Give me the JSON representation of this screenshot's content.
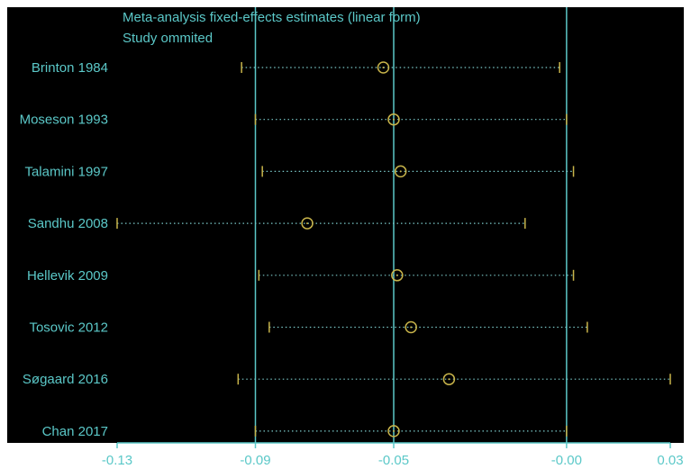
{
  "chart_data": {
    "type": "forest",
    "title": "Meta-analysis fixed-effects estimates (linear form)",
    "subtitle": "Study ommited",
    "xlabel": "",
    "ylabel": "",
    "xlim": [
      -0.13,
      0.03
    ],
    "x_ticks": [
      {
        "value": -0.13,
        "label": "-0.13"
      },
      {
        "value": -0.09,
        "label": "-0.09"
      },
      {
        "value": -0.05,
        "label": "-0.05"
      },
      {
        "value": -0.0,
        "label": "-0.00"
      },
      {
        "value": 0.03,
        "label": "0.03"
      }
    ],
    "reference_lines": [
      -0.09,
      -0.05,
      -0.0
    ],
    "studies": [
      {
        "label": "Brinton 1984",
        "estimate": -0.053,
        "lower": -0.094,
        "upper": -0.002
      },
      {
        "label": "Moseson 1993",
        "estimate": -0.05,
        "lower": -0.09,
        "upper": 0.0
      },
      {
        "label": "Talamini 1997",
        "estimate": -0.048,
        "lower": -0.088,
        "upper": 0.002
      },
      {
        "label": "Sandhu 2008",
        "estimate": -0.075,
        "lower": -0.13,
        "upper": -0.012
      },
      {
        "label": "Hellevik 2009",
        "estimate": -0.049,
        "lower": -0.089,
        "upper": 0.002
      },
      {
        "label": "Tosovic 2012",
        "estimate": -0.045,
        "lower": -0.086,
        "upper": 0.006
      },
      {
        "label": "Søgaard 2016",
        "estimate": -0.034,
        "lower": -0.095,
        "upper": 0.03
      },
      {
        "label": "Chan 2017",
        "estimate": -0.05,
        "lower": -0.09,
        "upper": 0.0
      }
    ],
    "grid": false,
    "legend": "none"
  },
  "colors": {
    "background": "#000000",
    "frame": "#ffffff",
    "text": "#5bc8c8",
    "axis": "#5bc8c8",
    "reference_line": "#5bc8c8",
    "ci_line": "#7ac8c8",
    "ci_cap": "#c8b44a",
    "marker": "#c8b44a"
  }
}
